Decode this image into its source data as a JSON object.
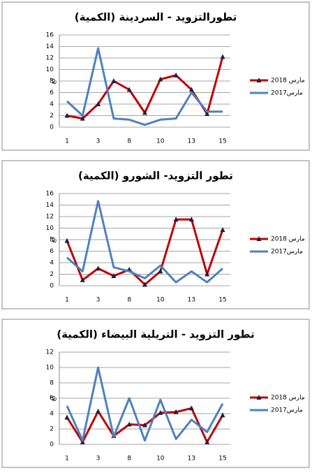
{
  "chart_data": [
    {
      "type": "line",
      "title": "تطورالتزويد - السردينة (الكمية)",
      "y_label": "كغ",
      "categories": [
        "1",
        null,
        "3",
        null,
        "8",
        null,
        "10",
        null,
        "13",
        null,
        "15"
      ],
      "series": [
        {
          "name": "مارس 2018",
          "color": "#c00000",
          "marker": "triangle",
          "values": [
            2,
            1.5,
            4,
            8,
            6.5,
            2.5,
            8.3,
            9,
            6.5,
            2.3,
            12.2
          ]
        },
        {
          "name": "مارس2017",
          "color": "#4f81bd",
          "values": [
            4.5,
            2,
            13.7,
            1.5,
            1.3,
            0.4,
            1.3,
            1.5,
            6,
            2.7,
            2.7
          ]
        }
      ],
      "ylim": [
        0,
        16
      ],
      "yticks": [
        0,
        2,
        4,
        6,
        8,
        10,
        12,
        14,
        16
      ],
      "grid": true,
      "legend": "right"
    },
    {
      "type": "line",
      "title": "تطور التزويد- الشورو (الكمية)",
      "y_label": "كغ",
      "categories": [
        "1",
        null,
        "3",
        null,
        "8",
        null,
        "10",
        null,
        "13",
        null,
        "15"
      ],
      "series": [
        {
          "name": "مارس 2018",
          "color": "#c00000",
          "marker": "triangle",
          "values": [
            7.8,
            1,
            3,
            1.7,
            2.8,
            0.2,
            2.5,
            11.5,
            11.5,
            2,
            9.7
          ]
        },
        {
          "name": "مارس2017",
          "color": "#4f81bd",
          "values": [
            4.9,
            2.5,
            14.7,
            3.2,
            2.5,
            1.3,
            3.5,
            0.6,
            2.5,
            0.6,
            3
          ]
        }
      ],
      "ylim": [
        0,
        16
      ],
      "yticks": [
        0,
        2,
        4,
        6,
        8,
        10,
        12,
        14,
        16
      ],
      "grid": true,
      "legend": "right"
    },
    {
      "type": "line",
      "title": "تطور التزويد - التريلية البيضاء (الكمية)",
      "y_label": "كغ",
      "categories": [
        "1",
        null,
        "3",
        null,
        "8",
        null,
        "10",
        null,
        "13",
        null,
        "15"
      ],
      "series": [
        {
          "name": "مارس 2018",
          "color": "#c00000",
          "marker": "triangle",
          "values": [
            3.5,
            0.3,
            4.3,
            1.1,
            2.6,
            2.5,
            4.1,
            4.2,
            4.7,
            0.3,
            3.8
          ]
        },
        {
          "name": "مارس2017",
          "color": "#4f81bd",
          "values": [
            5,
            0.5,
            10,
            1,
            6,
            0.5,
            5.8,
            0.7,
            3.2,
            1.6,
            5.3
          ]
        }
      ],
      "ylim": [
        0,
        12
      ],
      "yticks": [
        0,
        2,
        4,
        6,
        8,
        10,
        12
      ],
      "grid": true,
      "legend": "right"
    }
  ]
}
